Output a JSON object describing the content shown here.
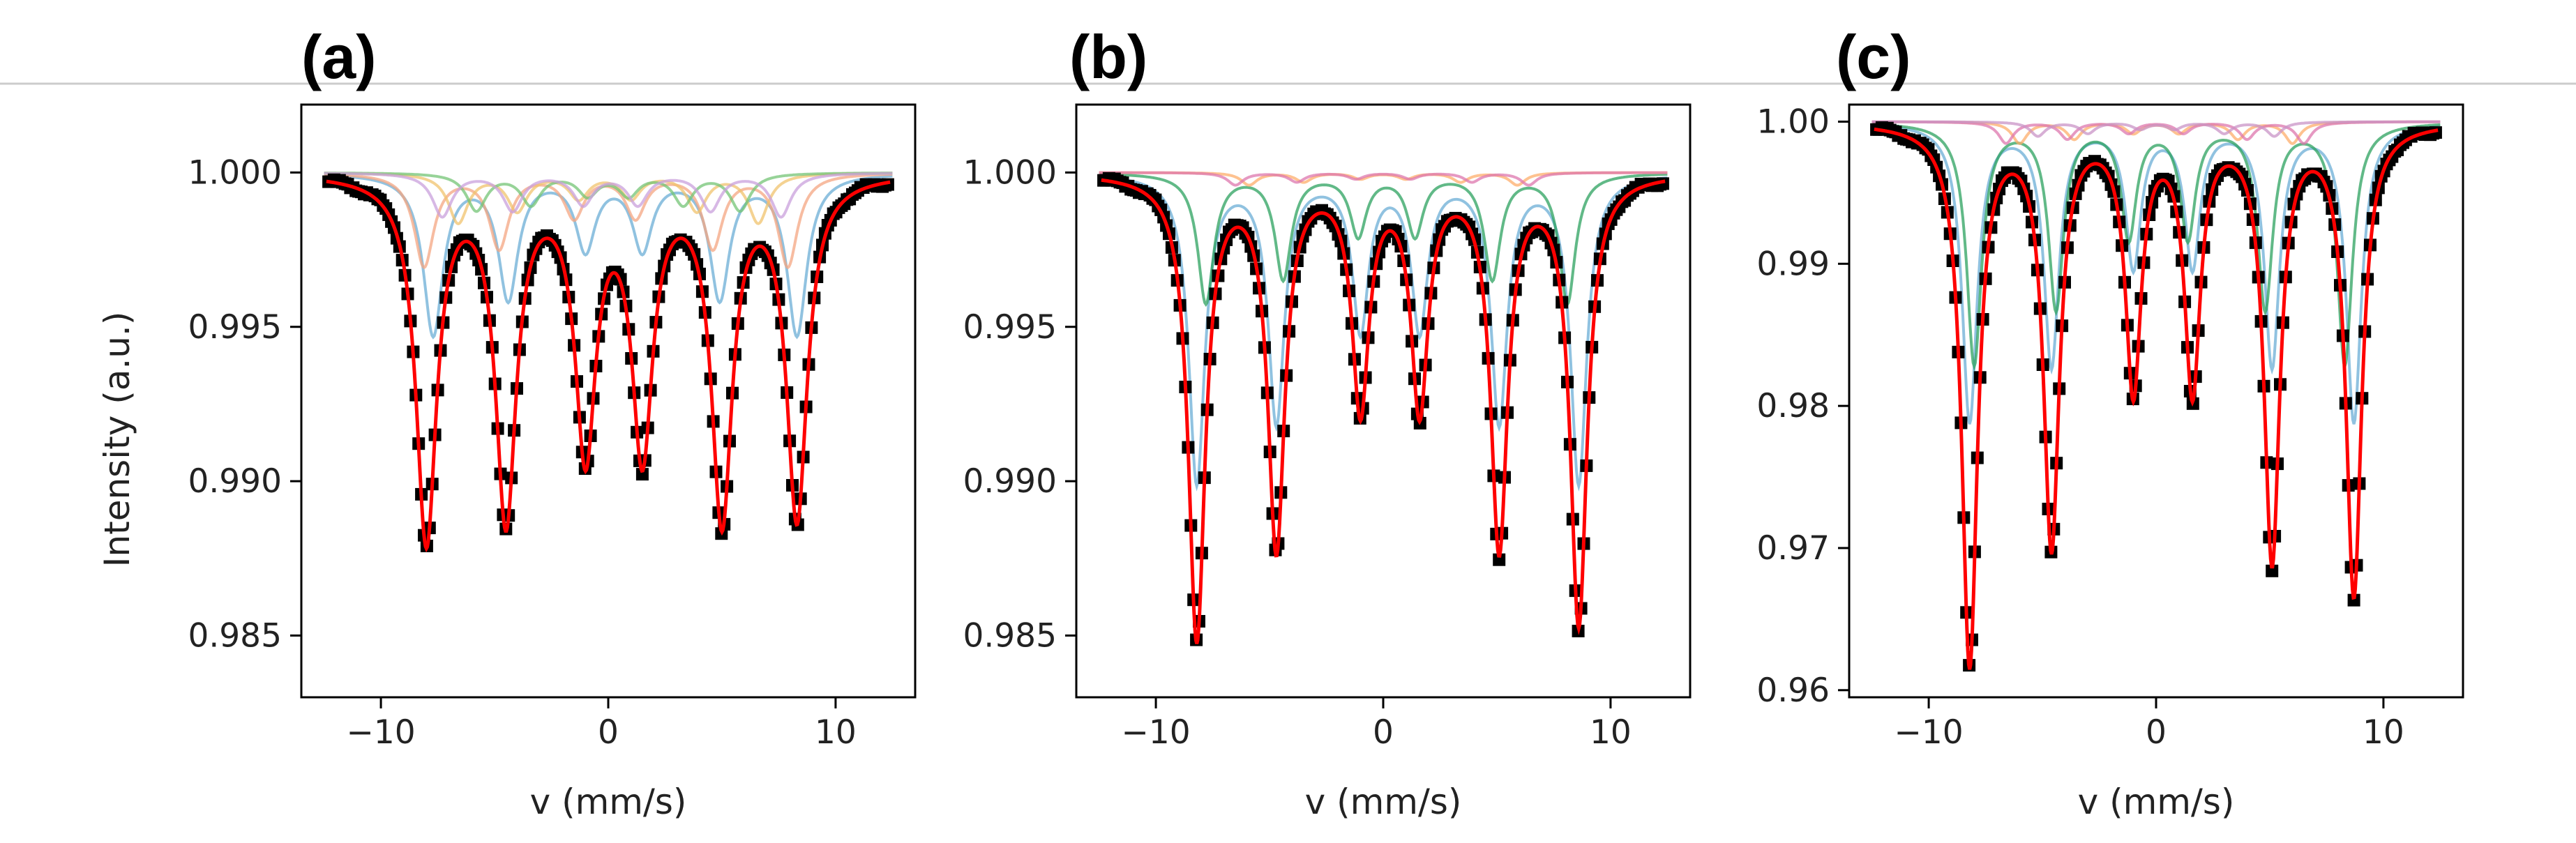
{
  "chart_data": [
    {
      "type": "scatter",
      "panel_label": "(a)",
      "xlabel": "v (mm/s)",
      "ylabel": "Intensity (a.u.)",
      "xlim": [
        -13.5,
        13.5
      ],
      "ylim": [
        0.983,
        1.0022
      ],
      "xticks": [
        -10,
        0,
        10
      ],
      "xtick_labels": [
        "−10",
        "0",
        "10"
      ],
      "yticks": [
        1.0,
        0.995,
        0.99,
        0.985
      ],
      "ytick_labels": [
        "1.000",
        "0.995",
        "0.990",
        "0.985"
      ],
      "line_positions": [
        -8.0,
        -4.5,
        -1.0,
        1.5,
        5.0,
        8.3
      ],
      "line_width": 0.55,
      "fit_depths": [
        0.0118,
        0.011,
        0.0088,
        0.0088,
        0.011,
        0.011
      ],
      "components": [
        {
          "color": "#6baed6",
          "positions": [
            -7.7,
            -4.4,
            -1.0,
            1.5,
            4.9,
            8.3
          ],
          "depths": [
            0.0052,
            0.004,
            0.0024,
            0.0024,
            0.004,
            0.0052
          ]
        },
        {
          "color": "#f4a582",
          "positions": [
            -8.1,
            -4.8,
            -1.5,
            1.2,
            4.6,
            7.9
          ],
          "depths": [
            0.003,
            0.0024,
            0.0014,
            0.0014,
            0.0024,
            0.003
          ]
        },
        {
          "color": "#f0c36d",
          "positions": [
            -6.6,
            -4.0,
            -1.3,
            1.0,
            3.9,
            6.6
          ],
          "depths": [
            0.0016,
            0.0012,
            0.0008,
            0.0008,
            0.0012,
            0.0016
          ]
        },
        {
          "color": "#74c476",
          "positions": [
            -5.8,
            -3.4,
            -0.9,
            0.9,
            3.3,
            5.8
          ],
          "depths": [
            0.0012,
            0.001,
            0.0007,
            0.0007,
            0.001,
            0.0012
          ]
        },
        {
          "color": "#c9a0dc",
          "positions": [
            -7.3,
            -4.2,
            -1.1,
            1.3,
            4.5,
            7.6
          ],
          "depths": [
            0.0014,
            0.0012,
            0.001,
            0.001,
            0.0012,
            0.0014
          ]
        }
      ]
    },
    {
      "type": "scatter",
      "panel_label": "(b)",
      "xlabel": "v (mm/s)",
      "ylabel": "",
      "xlim": [
        -13.5,
        13.5
      ],
      "ylim": [
        0.983,
        1.0022
      ],
      "xticks": [
        -10,
        0,
        10
      ],
      "xtick_labels": [
        "−10",
        "0",
        "10"
      ],
      "yticks": [
        1.0,
        0.995,
        0.99,
        0.985
      ],
      "ytick_labels": [
        "1.000",
        "0.995",
        "0.990",
        "0.985"
      ],
      "line_positions": [
        -8.2,
        -4.7,
        -1.0,
        1.6,
        5.1,
        8.6
      ],
      "line_width": 0.45,
      "fit_depths": [
        0.015,
        0.012,
        0.0075,
        0.0075,
        0.012,
        0.0145
      ],
      "components": [
        {
          "color": "#6baed6",
          "positions": [
            -8.2,
            -4.7,
            -1.0,
            1.6,
            5.1,
            8.6
          ],
          "depths": [
            0.01,
            0.008,
            0.005,
            0.005,
            0.008,
            0.01
          ]
        },
        {
          "color": "#2ca25f",
          "positions": [
            -7.8,
            -4.4,
            -1.1,
            1.4,
            4.8,
            8.1
          ],
          "depths": [
            0.0042,
            0.0034,
            0.002,
            0.002,
            0.0034,
            0.0042
          ]
        },
        {
          "color": "#fdae6b",
          "positions": [
            -5.9,
            -3.5,
            -1.0,
            1.0,
            3.4,
            5.9
          ],
          "depths": [
            0.0004,
            0.0003,
            0.0002,
            0.0002,
            0.0003,
            0.0004
          ]
        },
        {
          "color": "#de77ae",
          "positions": [
            -6.5,
            -3.8,
            -1.2,
            1.2,
            3.9,
            6.4
          ],
          "depths": [
            0.0004,
            0.0003,
            0.0002,
            0.0002,
            0.0003,
            0.0004
          ]
        }
      ]
    },
    {
      "type": "scatter",
      "panel_label": "(c)",
      "xlabel": "v (mm/s)",
      "ylabel": "",
      "xlim": [
        -13.5,
        13.5
      ],
      "ylim": [
        0.9595,
        1.0012
      ],
      "xticks": [
        -10,
        0,
        10
      ],
      "xtick_labels": [
        "−10",
        "0",
        "10"
      ],
      "yticks": [
        1.0,
        0.99,
        0.98,
        0.97,
        0.96
      ],
      "ytick_labels": [
        "1.00",
        "0.99",
        "0.98",
        "0.97",
        "0.96"
      ],
      "line_positions": [
        -8.2,
        -4.6,
        -1.0,
        1.6,
        5.1,
        8.7
      ],
      "line_width": 0.42,
      "fit_depths": [
        0.038,
        0.0295,
        0.0185,
        0.0185,
        0.0305,
        0.033
      ],
      "components": [
        {
          "color": "#6baed6",
          "positions": [
            -8.2,
            -4.6,
            -1.0,
            1.6,
            5.1,
            8.7
          ],
          "depths": [
            0.021,
            0.017,
            0.01,
            0.01,
            0.017,
            0.021
          ]
        },
        {
          "color": "#2ca25f",
          "positions": [
            -8.0,
            -4.4,
            -1.2,
            1.4,
            4.8,
            8.3
          ],
          "depths": [
            0.017,
            0.013,
            0.008,
            0.008,
            0.013,
            0.017
          ]
        },
        {
          "color": "#fdae6b",
          "positions": [
            -6.0,
            -3.6,
            -1.0,
            1.0,
            3.6,
            6.0
          ],
          "depths": [
            0.0015,
            0.0012,
            0.0008,
            0.0008,
            0.0012,
            0.0015
          ]
        },
        {
          "color": "#de77ae",
          "positions": [
            -6.6,
            -3.9,
            -1.2,
            1.2,
            4.0,
            6.5
          ],
          "depths": [
            0.0015,
            0.0012,
            0.0008,
            0.0008,
            0.0012,
            0.0015
          ]
        },
        {
          "color": "#c994c7",
          "positions": [
            -5.2,
            -3.0,
            -0.7,
            0.8,
            3.0,
            5.2
          ],
          "depths": [
            0.001,
            0.0008,
            0.0005,
            0.0005,
            0.0008,
            0.001
          ]
        }
      ]
    }
  ]
}
